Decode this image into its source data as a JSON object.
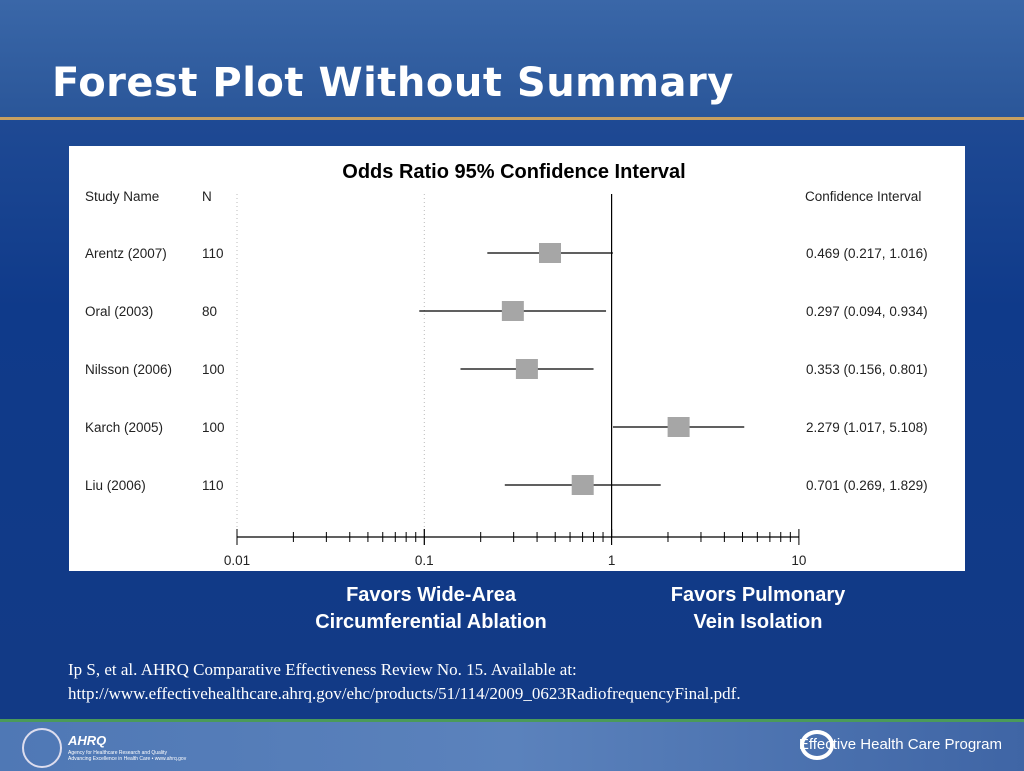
{
  "title": "Forest Plot Without Summary",
  "chart_data": {
    "type": "forest",
    "title": "Odds Ratio 95% Confidence Interval",
    "columns": {
      "study": "Study Name",
      "n": "N",
      "ci": "Confidence Interval"
    },
    "x_scale": "log",
    "xlim": [
      0.01,
      10
    ],
    "x_ticks": [
      "0.01",
      "0.1",
      "1",
      "10"
    ],
    "reference_line": 1,
    "studies": [
      {
        "name": "Arentz (2007)",
        "n": "110",
        "or": 0.469,
        "lo": 0.217,
        "hi": 1.016,
        "ci_text": "0.469 (0.217, 1.016)"
      },
      {
        "name": "Oral (2003)",
        "n": "80",
        "or": 0.297,
        "lo": 0.094,
        "hi": 0.934,
        "ci_text": "0.297 (0.094, 0.934)"
      },
      {
        "name": "Nilsson (2006)",
        "n": "100",
        "or": 0.353,
        "lo": 0.156,
        "hi": 0.801,
        "ci_text": "0.353 (0.156, 0.801)"
      },
      {
        "name": "Karch (2005)",
        "n": "100",
        "or": 2.279,
        "lo": 1.017,
        "hi": 5.108,
        "ci_text": "2.279 (1.017, 5.108)"
      },
      {
        "name": "Liu (2006)",
        "n": "110",
        "or": 0.701,
        "lo": 0.269,
        "hi": 1.829,
        "ci_text": "0.701 (0.269, 1.829)"
      }
    ]
  },
  "favors_left": [
    "Favors Wide-Area",
    "Circumferential Ablation"
  ],
  "favors_right": [
    "Favors Pulmonary",
    "Vein Isolation"
  ],
  "citation": [
    "Ip S, et al. AHRQ Comparative Effectiveness Review No. 15. Available at:",
    "http://www.effectivehealthcare.ahrq.gov/ehc/products/51/114/2009_0623RadiofrequencyFinal.pdf."
  ],
  "footer": {
    "ahrq": "AHRQ",
    "ahrq_line1": "Agency for Healthcare Research and Quality",
    "ahrq_line2": "Advancing Excellence in Health Care • www.ahrq.gov",
    "program": "Effective Health Care Program"
  }
}
